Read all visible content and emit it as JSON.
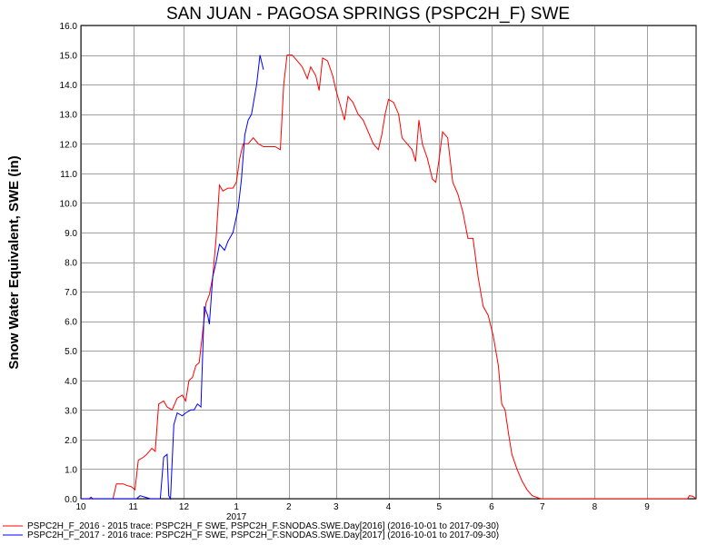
{
  "chart_data": {
    "type": "line",
    "title": "SAN JUAN - PAGOSA SPRINGS (PSPC2H_F) SWE",
    "ylabel": "Snow Water Equivalent, SWE (in)",
    "xlabel": "",
    "ylim": [
      0,
      16
    ],
    "y_ticks": [
      "0.0",
      "1.0",
      "2.0",
      "3.0",
      "4.0",
      "5.0",
      "6.0",
      "7.0",
      "8.0",
      "9.0",
      "10.0",
      "11.0",
      "12.0",
      "13.0",
      "14.0",
      "15.0",
      "16.0"
    ],
    "x_range": [
      "2016-10-01",
      "2017-09-30"
    ],
    "x_ticks": [
      {
        "date": "2016-10-01",
        "label": "10"
      },
      {
        "date": "2016-11-01",
        "label": "11"
      },
      {
        "date": "2016-12-01",
        "label": "12"
      },
      {
        "date": "2017-01-01",
        "label": "1"
      },
      {
        "date": "2017-02-01",
        "label": "2"
      },
      {
        "date": "2017-03-01",
        "label": "3"
      },
      {
        "date": "2017-04-01",
        "label": "4"
      },
      {
        "date": "2017-05-01",
        "label": "5"
      },
      {
        "date": "2017-06-01",
        "label": "6"
      },
      {
        "date": "2017-07-01",
        "label": "7"
      },
      {
        "date": "2017-08-01",
        "label": "8"
      },
      {
        "date": "2017-09-01",
        "label": "9"
      }
    ],
    "year_label": {
      "date": "2017-01-01",
      "label": "2017"
    },
    "grid": true,
    "legend_position": "bottom-left",
    "series": [
      {
        "name": "PSPC2H_F_2016 - 2015 trace: PSPC2H_F SWE, PSPC2H_F.SNODAS.SWE.Day[2016] (2016-10-01 to 2017-09-30)",
        "color": "#ff0000",
        "points": [
          [
            "2016-10-01",
            0.0
          ],
          [
            "2016-10-20",
            0.0
          ],
          [
            "2016-10-22",
            0.5
          ],
          [
            "2016-10-26",
            0.5
          ],
          [
            "2016-10-28",
            0.45
          ],
          [
            "2016-10-31",
            0.4
          ],
          [
            "2016-11-02",
            0.3
          ],
          [
            "2016-11-04",
            1.3
          ],
          [
            "2016-11-07",
            1.4
          ],
          [
            "2016-11-09",
            1.5
          ],
          [
            "2016-11-12",
            1.7
          ],
          [
            "2016-11-14",
            1.6
          ],
          [
            "2016-11-16",
            3.2
          ],
          [
            "2016-11-19",
            3.3
          ],
          [
            "2016-11-21",
            3.1
          ],
          [
            "2016-11-24",
            3.0
          ],
          [
            "2016-11-27",
            3.4
          ],
          [
            "2016-11-30",
            3.5
          ],
          [
            "2016-12-02",
            3.3
          ],
          [
            "2016-12-04",
            4.0
          ],
          [
            "2016-12-06",
            4.1
          ],
          [
            "2016-12-08",
            4.5
          ],
          [
            "2016-12-10",
            4.6
          ],
          [
            "2016-12-12",
            5.6
          ],
          [
            "2016-12-14",
            6.6
          ],
          [
            "2016-12-16",
            6.9
          ],
          [
            "2016-12-18",
            7.5
          ],
          [
            "2016-12-20",
            8.8
          ],
          [
            "2016-12-22",
            10.6
          ],
          [
            "2016-12-24",
            10.4
          ],
          [
            "2016-12-27",
            10.5
          ],
          [
            "2016-12-30",
            10.5
          ],
          [
            "2017-01-01",
            10.7
          ],
          [
            "2017-01-03",
            11.5
          ],
          [
            "2017-01-05",
            12.0
          ],
          [
            "2017-01-08",
            12.0
          ],
          [
            "2017-01-11",
            12.2
          ],
          [
            "2017-01-14",
            12.0
          ],
          [
            "2017-01-17",
            11.9
          ],
          [
            "2017-01-20",
            11.9
          ],
          [
            "2017-01-24",
            11.9
          ],
          [
            "2017-01-27",
            11.8
          ],
          [
            "2017-01-29",
            14.0
          ],
          [
            "2017-01-31",
            15.0
          ],
          [
            "2017-02-03",
            15.0
          ],
          [
            "2017-02-06",
            14.8
          ],
          [
            "2017-02-09",
            14.6
          ],
          [
            "2017-02-12",
            14.2
          ],
          [
            "2017-02-14",
            14.6
          ],
          [
            "2017-02-17",
            14.3
          ],
          [
            "2017-02-19",
            13.8
          ],
          [
            "2017-02-21",
            14.9
          ],
          [
            "2017-02-24",
            14.8
          ],
          [
            "2017-02-27",
            14.3
          ],
          [
            "2017-03-01",
            13.8
          ],
          [
            "2017-03-04",
            13.2
          ],
          [
            "2017-03-06",
            12.8
          ],
          [
            "2017-03-08",
            13.6
          ],
          [
            "2017-03-11",
            13.4
          ],
          [
            "2017-03-14",
            13.0
          ],
          [
            "2017-03-17",
            12.8
          ],
          [
            "2017-03-20",
            12.4
          ],
          [
            "2017-03-23",
            12.0
          ],
          [
            "2017-03-26",
            11.8
          ],
          [
            "2017-03-28",
            12.3
          ],
          [
            "2017-03-30",
            13.0
          ],
          [
            "2017-04-01",
            13.5
          ],
          [
            "2017-04-04",
            13.4
          ],
          [
            "2017-04-07",
            13.0
          ],
          [
            "2017-04-09",
            12.2
          ],
          [
            "2017-04-12",
            12.0
          ],
          [
            "2017-04-15",
            11.8
          ],
          [
            "2017-04-17",
            11.4
          ],
          [
            "2017-04-19",
            12.8
          ],
          [
            "2017-04-21",
            12.0
          ],
          [
            "2017-04-24",
            11.5
          ],
          [
            "2017-04-27",
            10.8
          ],
          [
            "2017-04-29",
            10.7
          ],
          [
            "2017-05-01",
            11.5
          ],
          [
            "2017-05-03",
            12.4
          ],
          [
            "2017-05-06",
            12.2
          ],
          [
            "2017-05-09",
            10.7
          ],
          [
            "2017-05-12",
            10.3
          ],
          [
            "2017-05-15",
            9.7
          ],
          [
            "2017-05-18",
            8.8
          ],
          [
            "2017-05-21",
            8.8
          ],
          [
            "2017-05-24",
            7.5
          ],
          [
            "2017-05-27",
            6.5
          ],
          [
            "2017-05-30",
            6.2
          ],
          [
            "2017-06-02",
            5.5
          ],
          [
            "2017-06-05",
            4.5
          ],
          [
            "2017-06-07",
            3.2
          ],
          [
            "2017-06-09",
            3.0
          ],
          [
            "2017-06-11",
            2.2
          ],
          [
            "2017-06-13",
            1.5
          ],
          [
            "2017-06-16",
            1.0
          ],
          [
            "2017-06-19",
            0.6
          ],
          [
            "2017-06-22",
            0.3
          ],
          [
            "2017-06-25",
            0.1
          ],
          [
            "2017-06-30",
            0.0
          ],
          [
            "2017-09-25",
            0.0
          ],
          [
            "2017-09-26",
            0.1
          ],
          [
            "2017-09-28",
            0.08
          ],
          [
            "2017-09-30",
            0.0
          ]
        ]
      },
      {
        "name": "PSPC2H_F_2017 - 2016 trace: PSPC2H_F SWE, PSPC2H_F.SNODAS.SWE.Day[2017] (2016-10-01 to 2017-09-30)",
        "color": "#0000ff",
        "points": [
          [
            "2016-10-01",
            0.0
          ],
          [
            "2016-10-06",
            0.0
          ],
          [
            "2016-10-07",
            0.05
          ],
          [
            "2016-10-08",
            0.0
          ],
          [
            "2016-11-03",
            0.0
          ],
          [
            "2016-11-05",
            0.1
          ],
          [
            "2016-11-08",
            0.05
          ],
          [
            "2016-11-11",
            0.0
          ],
          [
            "2016-11-15",
            0.0
          ],
          [
            "2016-11-17",
            0.0
          ],
          [
            "2016-11-19",
            1.4
          ],
          [
            "2016-11-21",
            1.5
          ],
          [
            "2016-11-22",
            0.1
          ],
          [
            "2016-11-23",
            0.0
          ],
          [
            "2016-11-25",
            2.5
          ],
          [
            "2016-11-27",
            2.9
          ],
          [
            "2016-11-30",
            2.8
          ],
          [
            "2016-12-02",
            2.9
          ],
          [
            "2016-12-05",
            3.0
          ],
          [
            "2016-12-07",
            3.0
          ],
          [
            "2016-12-09",
            3.2
          ],
          [
            "2016-12-11",
            3.1
          ],
          [
            "2016-12-13",
            6.5
          ],
          [
            "2016-12-15",
            6.2
          ],
          [
            "2016-12-16",
            5.9
          ],
          [
            "2016-12-18",
            7.5
          ],
          [
            "2016-12-20",
            8.0
          ],
          [
            "2016-12-22",
            8.6
          ],
          [
            "2016-12-25",
            8.4
          ],
          [
            "2016-12-27",
            8.7
          ],
          [
            "2016-12-30",
            9.0
          ],
          [
            "2017-01-02",
            9.8
          ],
          [
            "2017-01-04",
            10.8
          ],
          [
            "2017-01-06",
            12.3
          ],
          [
            "2017-01-08",
            12.8
          ],
          [
            "2017-01-10",
            13.0
          ],
          [
            "2017-01-13",
            14.0
          ],
          [
            "2017-01-15",
            15.0
          ],
          [
            "2017-01-17",
            14.5
          ]
        ]
      }
    ]
  }
}
